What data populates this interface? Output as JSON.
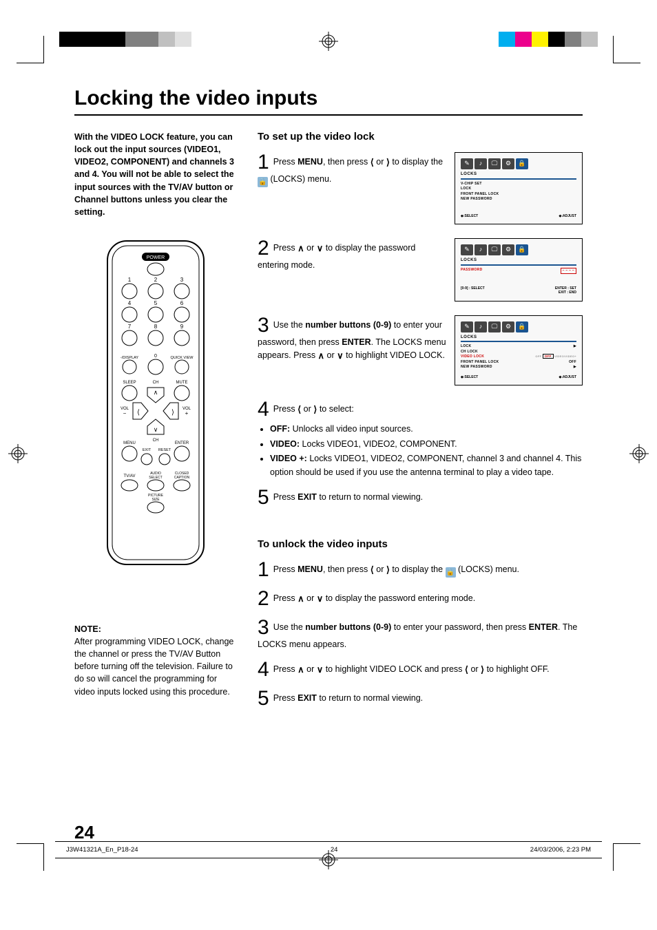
{
  "title": "Locking the video inputs",
  "intro": "With the VIDEO LOCK feature, you can lock out the input sources (VIDEO1, VIDEO2, COMPONENT) and channels 3 and 4. You will not be able to select the input sources with the TV/AV button or Channel buttons unless you clear the setting.",
  "note": {
    "label": "NOTE:",
    "text": "After programming VIDEO LOCK, change the channel or press the TV/AV Button before turning off the television. Failure to do so will cancel the programming for video inputs locked using this procedure."
  },
  "section1": {
    "heading": "To set up the video lock",
    "step1_a": "Press ",
    "step1_menu": "MENU",
    "step1_b": ", then press ",
    "step1_c": " or ",
    "step1_d": " to display the ",
    "step1_e": " (LOCKS) menu.",
    "step2_a": "Press ",
    "step2_b": " or ",
    "step2_c": " to display the password entering mode.",
    "step3_a": "Use the ",
    "step3_bold": "number buttons (0-9)",
    "step3_b": " to enter your password, then press ",
    "step3_enter": "ENTER",
    "step3_c": ". The LOCKS menu appears. Press ",
    "step3_d": " or ",
    "step3_e": " to highlight VIDEO LOCK.",
    "step4_a": "Press ",
    "step4_b": " or ",
    "step4_c": " to select:",
    "bullets": [
      {
        "label": "OFF:",
        "text": " Unlocks all video input sources."
      },
      {
        "label": "VIDEO:",
        "text": " Locks VIDEO1, VIDEO2, COMPONENT."
      },
      {
        "label": "VIDEO +:",
        "text": " Locks VIDEO1, VIDEO2, COMPONENT, channel 3 and channel 4. This option should be used if you use the antenna terminal to play a video tape."
      }
    ],
    "step5_a": "Press ",
    "step5_exit": "EXIT",
    "step5_b": " to return to normal viewing."
  },
  "section2": {
    "heading": "To unlock the video inputs",
    "step1": {
      "a": "Press ",
      "menu": "MENU",
      "b": ", then press ",
      "c": " or ",
      "d": " to display the ",
      "e": " (LOCKS) menu."
    },
    "step2": {
      "a": "Press ",
      "b": " or ",
      "c": " to display the password entering mode."
    },
    "step3": {
      "a": "Use the ",
      "bold": "number buttons (0-9)",
      "b": " to enter your password, then press ",
      "enter": "ENTER",
      "c": ". The LOCKS menu appears."
    },
    "step4": {
      "a": "Press ",
      "b": " or ",
      "c": " to highlight VIDEO LOCK and press ",
      "d": " or ",
      "e": " to highlight OFF."
    },
    "step5": {
      "a": "Press ",
      "exit": "EXIT",
      "b": " to return to normal viewing."
    }
  },
  "osd1": {
    "title": "LOCKS",
    "items": [
      "V-CHIP SET",
      "LOCK",
      "FRONT PANEL LOCK",
      "NEW PASSWORD"
    ],
    "footer_l": "◆:SELECT",
    "footer_r": "◆:ADJUST"
  },
  "osd2": {
    "title": "LOCKS",
    "row_label": "PASSWORD",
    "row_val": "– – – –",
    "footer_l": "[0-9] : SELECT",
    "footer_r1": "ENTER : SET",
    "footer_r2": "EXIT : END"
  },
  "osd3": {
    "title": "LOCKS",
    "rows": [
      {
        "l": "LOCK",
        "r": "▶"
      },
      {
        "l": "  CH LOCK",
        "r": ""
      },
      {
        "l": "  VIDEO LOCK",
        "r": "OFF",
        "extra": "VIDEO/VIDEO+",
        "hi": true
      },
      {
        "l": "FRONT PANEL LOCK",
        "r": "OFF"
      },
      {
        "l": "NEW PASSWORD",
        "r": "▶"
      }
    ],
    "footer_l": "◆:SELECT",
    "footer_r": "◆:ADJUST"
  },
  "remote": {
    "labels": {
      "power": "POWER",
      "display": "-/DISPLAY",
      "quickview": "QUICK VIEW",
      "sleep": "SLEEP",
      "mute": "MUTE",
      "ch": "CH",
      "vol_minus": "VOL\n−",
      "vol_plus": "VOL\n+",
      "menu": "MENU",
      "enter": "ENTER",
      "exit": "EXIT",
      "reset": "RESET",
      "tvav": "TV/AV",
      "audio": "AUDIO\nSELECT",
      "cc": "CLOSED\nCAPTION",
      "psize": "PICTURE\nSIZE"
    }
  },
  "page_number": "24",
  "footer": {
    "file": "J3W41321A_En_P18-24",
    "page": "24",
    "date": "24/03/2006, 2:23 PM"
  },
  "colors": {
    "accent": "#1a5490",
    "lock_bg": "#8bb8d8",
    "bars_left": [
      "#000000",
      "#000000",
      "#000000",
      "#000000",
      "#808080",
      "#808080",
      "#c0c0c0",
      "#e0e0e0"
    ],
    "bars_right": [
      "#00aeef",
      "#ec008c",
      "#fff200",
      "#000000",
      "#808080",
      "#c0c0c0"
    ]
  }
}
